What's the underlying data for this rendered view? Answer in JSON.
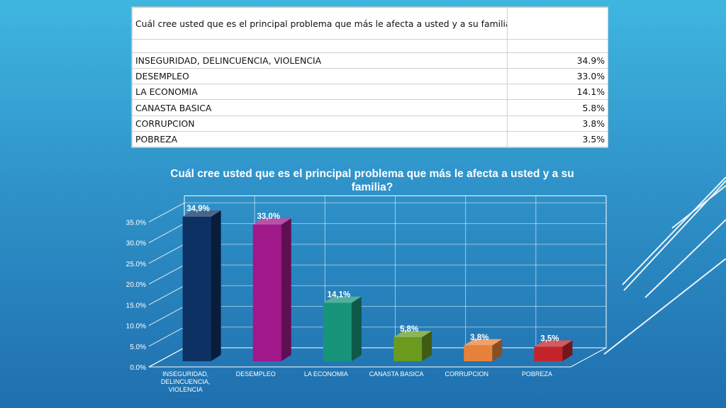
{
  "table": {
    "question": "Cuál cree usted que es el principal problema que más le afecta a usted y a su familia?",
    "rows": [
      {
        "label": "INSEGURIDAD, DELINCUENCIA, VIOLENCIA",
        "value": "34.9%"
      },
      {
        "label": "DESEMPLEO",
        "value": "33.0%"
      },
      {
        "label": "LA ECONOMIA",
        "value": "14.1%"
      },
      {
        "label": "CANASTA BASICA",
        "value": "5.8%"
      },
      {
        "label": "CORRUPCION",
        "value": "3.8%"
      },
      {
        "label": "POBREZA",
        "value": "3.5%"
      }
    ]
  },
  "chart_data": {
    "type": "bar",
    "title": "Cuál cree usted que es el principal problema que más le afecta a usted y a su familia?",
    "categories": [
      "INSEGURIDAD, DELINCUENCIA, VIOLENCIA",
      "DESEMPLEO",
      "LA ECONOMIA",
      "CANASTA BASICA",
      "CORRUPCION",
      "POBREZA"
    ],
    "category_lines": [
      [
        "INSEGURIDAD,",
        "DELINCUENCIA,",
        "VIOLENCIA"
      ],
      [
        "DESEMPLEO"
      ],
      [
        "LA ECONOMIA"
      ],
      [
        "CANASTA BASICA"
      ],
      [
        "CORRUPCION"
      ],
      [
        "POBREZA"
      ]
    ],
    "values": [
      34.9,
      33.0,
      14.1,
      5.8,
      3.8,
      3.5
    ],
    "data_labels": [
      "34,9%",
      "33,0%",
      "14,1%",
      "5,8%",
      "3,8%",
      "3,5%"
    ],
    "yticks": [
      0,
      5,
      10,
      15,
      20,
      25,
      30,
      35
    ],
    "ytick_labels": [
      "0.0%",
      "5.0%",
      "10.0%",
      "15.0%",
      "20.0%",
      "25.0%",
      "30.0%",
      "35.0%"
    ],
    "ylim": [
      0,
      35
    ],
    "colors": [
      "#0d3163",
      "#a0188a",
      "#17947a",
      "#6a9a1e",
      "#e8823a",
      "#c3242a"
    ],
    "grid": true,
    "style": "3d-column",
    "xlabel": "",
    "ylabel": ""
  }
}
